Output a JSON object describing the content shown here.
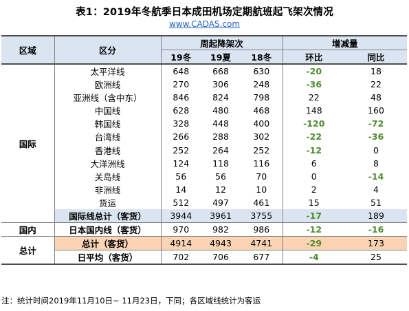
{
  "title": "表1：2019年冬航季日本成田机场定期航班起飞架次情况",
  "source_url": "www.CADAS.com",
  "header": {
    "region": "区域",
    "category": "区分",
    "weekly_group": "周起降架次",
    "change_group": "增减量",
    "w19": "19冬",
    "s19": "19夏",
    "w18": "18冬",
    "qoq": "环比",
    "yoy": "同比"
  },
  "regions": {
    "intl": "国际",
    "domestic": "国内",
    "total": "总计"
  },
  "rows": [
    {
      "name": "太平洋线",
      "w19": "648",
      "s19": "668",
      "w18": "630",
      "qoq": "-20",
      "yoy": "18"
    },
    {
      "name": "欧洲线",
      "w19": "270",
      "s19": "306",
      "w18": "248",
      "qoq": "-36",
      "yoy": "22"
    },
    {
      "name": "亚洲线（含中东）",
      "w19": "846",
      "s19": "824",
      "w18": "798",
      "qoq": "22",
      "yoy": "48"
    },
    {
      "name": "中国线",
      "w19": "628",
      "s19": "480",
      "w18": "468",
      "qoq": "148",
      "yoy": "160"
    },
    {
      "name": "韩国线",
      "w19": "328",
      "s19": "448",
      "w18": "400",
      "qoq": "-120",
      "yoy": "-72"
    },
    {
      "name": "台湾线",
      "w19": "266",
      "s19": "288",
      "w18": "302",
      "qoq": "-22",
      "yoy": "-36"
    },
    {
      "name": "香港线",
      "w19": "252",
      "s19": "264",
      "w18": "252",
      "qoq": "-12",
      "yoy": "0"
    },
    {
      "name": "大洋洲线",
      "w19": "124",
      "s19": "118",
      "w18": "116",
      "qoq": "6",
      "yoy": "8"
    },
    {
      "name": "关岛线",
      "w19": "56",
      "s19": "56",
      "w18": "70",
      "qoq": "0",
      "yoy": "-14"
    },
    {
      "name": "非洲线",
      "w19": "14",
      "s19": "12",
      "w18": "10",
      "qoq": "2",
      "yoy": "4"
    },
    {
      "name": "货运",
      "w19": "512",
      "s19": "497",
      "w18": "461",
      "qoq": "15",
      "yoy": "51"
    },
    {
      "name": "国际线总计（客货）",
      "w19": "3944",
      "s19": "3961",
      "w18": "3755",
      "qoq": "-17",
      "yoy": "189"
    },
    {
      "name": "日本国内线（客货）",
      "w19": "970",
      "s19": "982",
      "w18": "986",
      "qoq": "-12",
      "yoy": "-16"
    },
    {
      "name": "总计（客货）",
      "w19": "4914",
      "s19": "4943",
      "w18": "4741",
      "qoq": "-29",
      "yoy": "173"
    },
    {
      "name": "日平均（客货）",
      "w19": "702",
      "s19": "706",
      "w18": "677",
      "qoq": "-4",
      "yoy": "25"
    }
  ],
  "colors": {
    "header_bg": "#dbe5f1",
    "total_bg": "#fbd4b4",
    "negative": "#4e8a2e",
    "link": "#1f5fbf"
  },
  "note": "注：统计时间2019年11月10日~ 11月23日，下同；各区域线统计为客运"
}
